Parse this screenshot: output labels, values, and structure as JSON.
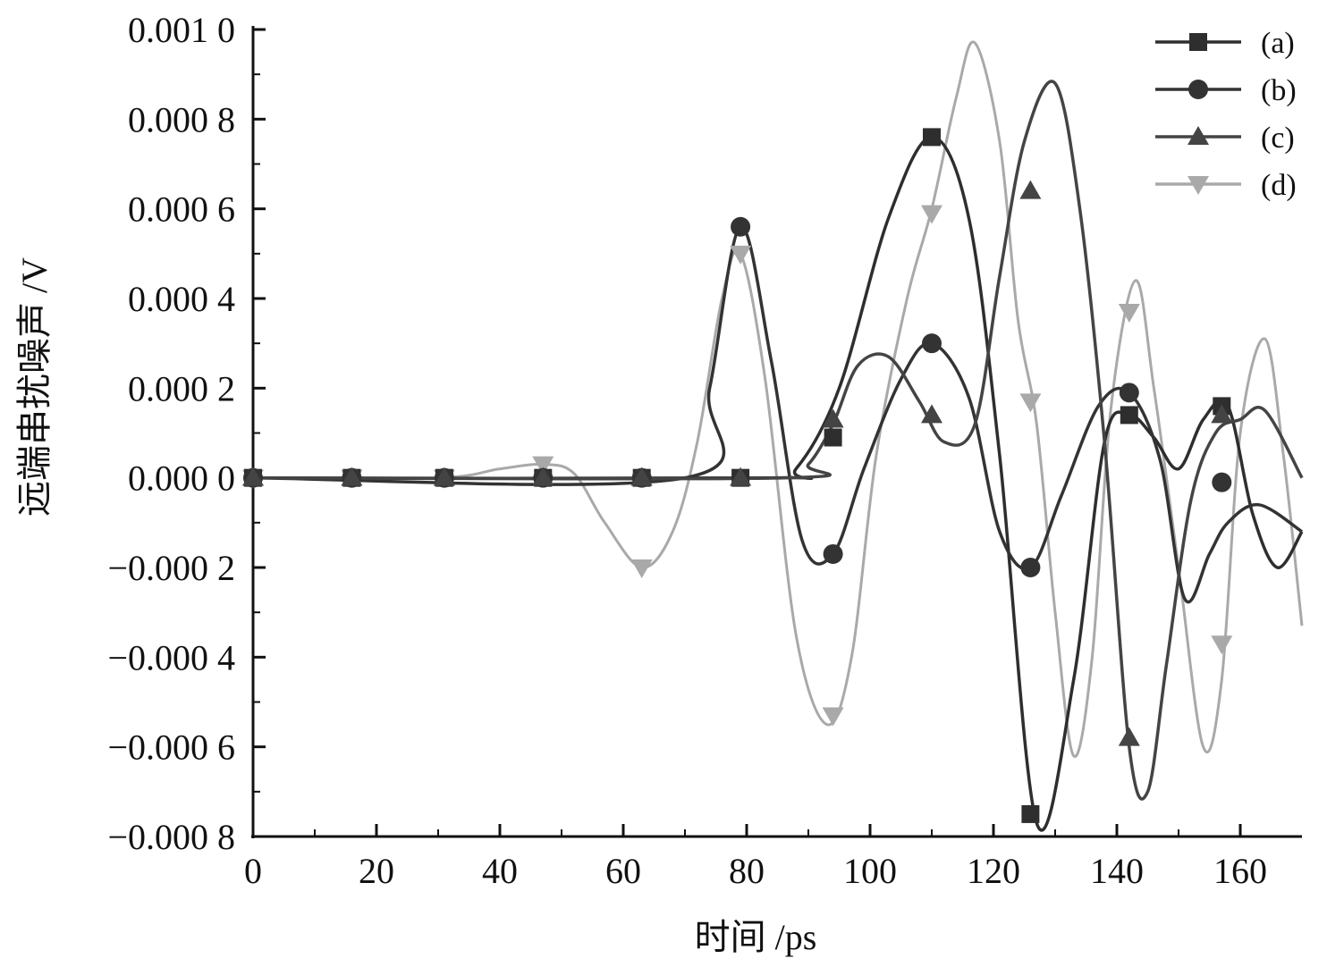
{
  "chart_data": {
    "type": "line",
    "xlabel": "时间 /ps",
    "ylabel": "远端串扰噪声 /V",
    "xlim": [
      0,
      170
    ],
    "ylim": [
      -0.0008,
      0.001
    ],
    "x_ticks": [
      {
        "value": 0,
        "label": "0"
      },
      {
        "value": 20,
        "label": "20"
      },
      {
        "value": 40,
        "label": "40"
      },
      {
        "value": 60,
        "label": "60"
      },
      {
        "value": 80,
        "label": "80"
      },
      {
        "value": 100,
        "label": "100"
      },
      {
        "value": 120,
        "label": "120"
      },
      {
        "value": 140,
        "label": "140"
      },
      {
        "value": 160,
        "label": "160"
      }
    ],
    "y_ticks": [
      {
        "value": 0.001,
        "label": "0.001 0"
      },
      {
        "value": 0.0008,
        "label": "0.000 8"
      },
      {
        "value": 0.0006,
        "label": "0.000 6"
      },
      {
        "value": 0.0004,
        "label": "0.000 4"
      },
      {
        "value": 0.0002,
        "label": "0.000 2"
      },
      {
        "value": 0,
        "label": "0.000 0"
      },
      {
        "value": -0.0002,
        "label": "−0.000 2"
      },
      {
        "value": -0.0004,
        "label": "−0.000 4"
      },
      {
        "value": -0.0006,
        "label": "−0.000 6"
      },
      {
        "value": -0.0008,
        "label": "−0.000 8"
      }
    ],
    "legend_position": "top-right",
    "series": [
      {
        "name": "(a)",
        "marker": "square",
        "color": "#2e2e2e",
        "curve": [
          [
            0,
            0
          ],
          [
            83,
            0
          ],
          [
            88,
            2e-05
          ],
          [
            95,
            0.0002
          ],
          [
            103,
            0.00058
          ],
          [
            110,
            0.00076
          ],
          [
            116,
            0.00058
          ],
          [
            121,
            5e-05
          ],
          [
            127,
            -0.00077
          ],
          [
            133,
            -0.00045
          ],
          [
            138,
            8e-05
          ],
          [
            142,
            0.00014
          ],
          [
            146,
            9e-05
          ],
          [
            150,
            2e-05
          ],
          [
            154,
            0.00013
          ],
          [
            158,
            0.00016
          ],
          [
            162,
            -8e-05
          ],
          [
            166,
            -0.0002
          ],
          [
            170,
            -0.00012
          ]
        ],
        "markers": [
          [
            0,
            0
          ],
          [
            16,
            0
          ],
          [
            31,
            0
          ],
          [
            47,
            0
          ],
          [
            63,
            0
          ],
          [
            79,
            0
          ],
          [
            94,
            9e-05
          ],
          [
            110,
            0.00076
          ],
          [
            126,
            -0.00075
          ],
          [
            142,
            0.00014
          ],
          [
            157,
            0.00016
          ]
        ]
      },
      {
        "name": "(b)",
        "marker": "circle",
        "color": "#333333",
        "curve": [
          [
            0,
            0
          ],
          [
            70,
            0
          ],
          [
            74,
            0.0002
          ],
          [
            79,
            0.00056
          ],
          [
            84,
            0.00026
          ],
          [
            89,
            -0.00014
          ],
          [
            94,
            -0.00017
          ],
          [
            99,
            2e-05
          ],
          [
            105,
            0.00022
          ],
          [
            110,
            0.0003
          ],
          [
            116,
            0.00018
          ],
          [
            121,
            -0.00012
          ],
          [
            126,
            -0.0002
          ],
          [
            131,
            -4e-05
          ],
          [
            137,
            0.00016
          ],
          [
            142,
            0.00019
          ],
          [
            147,
            4e-05
          ],
          [
            151,
            -0.00027
          ],
          [
            155,
            -0.00017
          ],
          [
            158,
            -0.0001
          ],
          [
            163,
            -6e-05
          ],
          [
            170,
            -0.00012
          ]
        ],
        "markers": [
          [
            0,
            0
          ],
          [
            16,
            0
          ],
          [
            31,
            0
          ],
          [
            47,
            0
          ],
          [
            63,
            0
          ],
          [
            79,
            0.00056
          ],
          [
            94,
            -0.00017
          ],
          [
            110,
            0.0003
          ],
          [
            126,
            -0.0002
          ],
          [
            142,
            0.00019
          ],
          [
            157,
            -1e-05
          ]
        ]
      },
      {
        "name": "(c)",
        "marker": "triangle-up",
        "color": "#444444",
        "curve": [
          [
            0,
            0
          ],
          [
            86,
            0
          ],
          [
            90,
            3e-05
          ],
          [
            94,
            0.00012
          ],
          [
            98,
            0.00025
          ],
          [
            103,
            0.00027
          ],
          [
            108,
            0.00017
          ],
          [
            112,
            8e-05
          ],
          [
            117,
            0.00012
          ],
          [
            121,
            0.00045
          ],
          [
            125,
            0.00075
          ],
          [
            130,
            0.00088
          ],
          [
            134,
            0.0006
          ],
          [
            138,
            8e-05
          ],
          [
            142,
            -0.0006
          ],
          [
            145,
            -0.0007
          ],
          [
            148,
            -0.00042
          ],
          [
            152,
            -5e-05
          ],
          [
            156,
            0.0001
          ],
          [
            160,
            0.00013
          ],
          [
            164,
            0.00015
          ],
          [
            170,
            0
          ]
        ],
        "markers": [
          [
            0,
            0
          ],
          [
            16,
            0
          ],
          [
            31,
            0
          ],
          [
            47,
            0
          ],
          [
            63,
            0
          ],
          [
            79,
            0
          ],
          [
            94,
            0.00013
          ],
          [
            110,
            0.00014
          ],
          [
            126,
            0.00064
          ],
          [
            142,
            -0.00058
          ],
          [
            157,
            0.00014
          ]
        ]
      },
      {
        "name": "(d)",
        "marker": "triangle-down",
        "color": "#a9a9a9",
        "curve": [
          [
            0,
            0
          ],
          [
            30,
            0
          ],
          [
            40,
            2e-05
          ],
          [
            47,
            3e-05
          ],
          [
            52,
            1e-05
          ],
          [
            57,
            -0.0001
          ],
          [
            63,
            -0.0002
          ],
          [
            68,
            -0.00012
          ],
          [
            72,
            8e-05
          ],
          [
            76,
            0.0004
          ],
          [
            79,
            0.0005
          ],
          [
            83,
            0.00022
          ],
          [
            88,
            -0.00035
          ],
          [
            93,
            -0.00055
          ],
          [
            97,
            -0.0004
          ],
          [
            101,
            5e-05
          ],
          [
            106,
            0.0004
          ],
          [
            110,
            0.0006
          ],
          [
            114,
            0.00085
          ],
          [
            117,
            0.00097
          ],
          [
            121,
            0.00075
          ],
          [
            124,
            0.00035
          ],
          [
            127,
            0.00012
          ],
          [
            130,
            -0.0003
          ],
          [
            133,
            -0.00062
          ],
          [
            136,
            -0.0004
          ],
          [
            139,
            0.00015
          ],
          [
            143,
            0.00044
          ],
          [
            146,
            0.0002
          ],
          [
            150,
            -0.0002
          ],
          [
            154,
            -0.0006
          ],
          [
            157,
            -0.00045
          ],
          [
            160,
            0.0001
          ],
          [
            164,
            0.00031
          ],
          [
            167,
            5e-05
          ],
          [
            170,
            -0.00033
          ]
        ],
        "markers": [
          [
            0,
            0
          ],
          [
            16,
            0
          ],
          [
            31,
            0
          ],
          [
            47,
            3e-05
          ],
          [
            63,
            -0.0002
          ],
          [
            79,
            0.0005
          ],
          [
            94,
            -0.00053
          ],
          [
            110,
            0.00059
          ],
          [
            126,
            0.00017
          ],
          [
            142,
            0.00037
          ],
          [
            157,
            -0.00037
          ]
        ]
      }
    ]
  }
}
